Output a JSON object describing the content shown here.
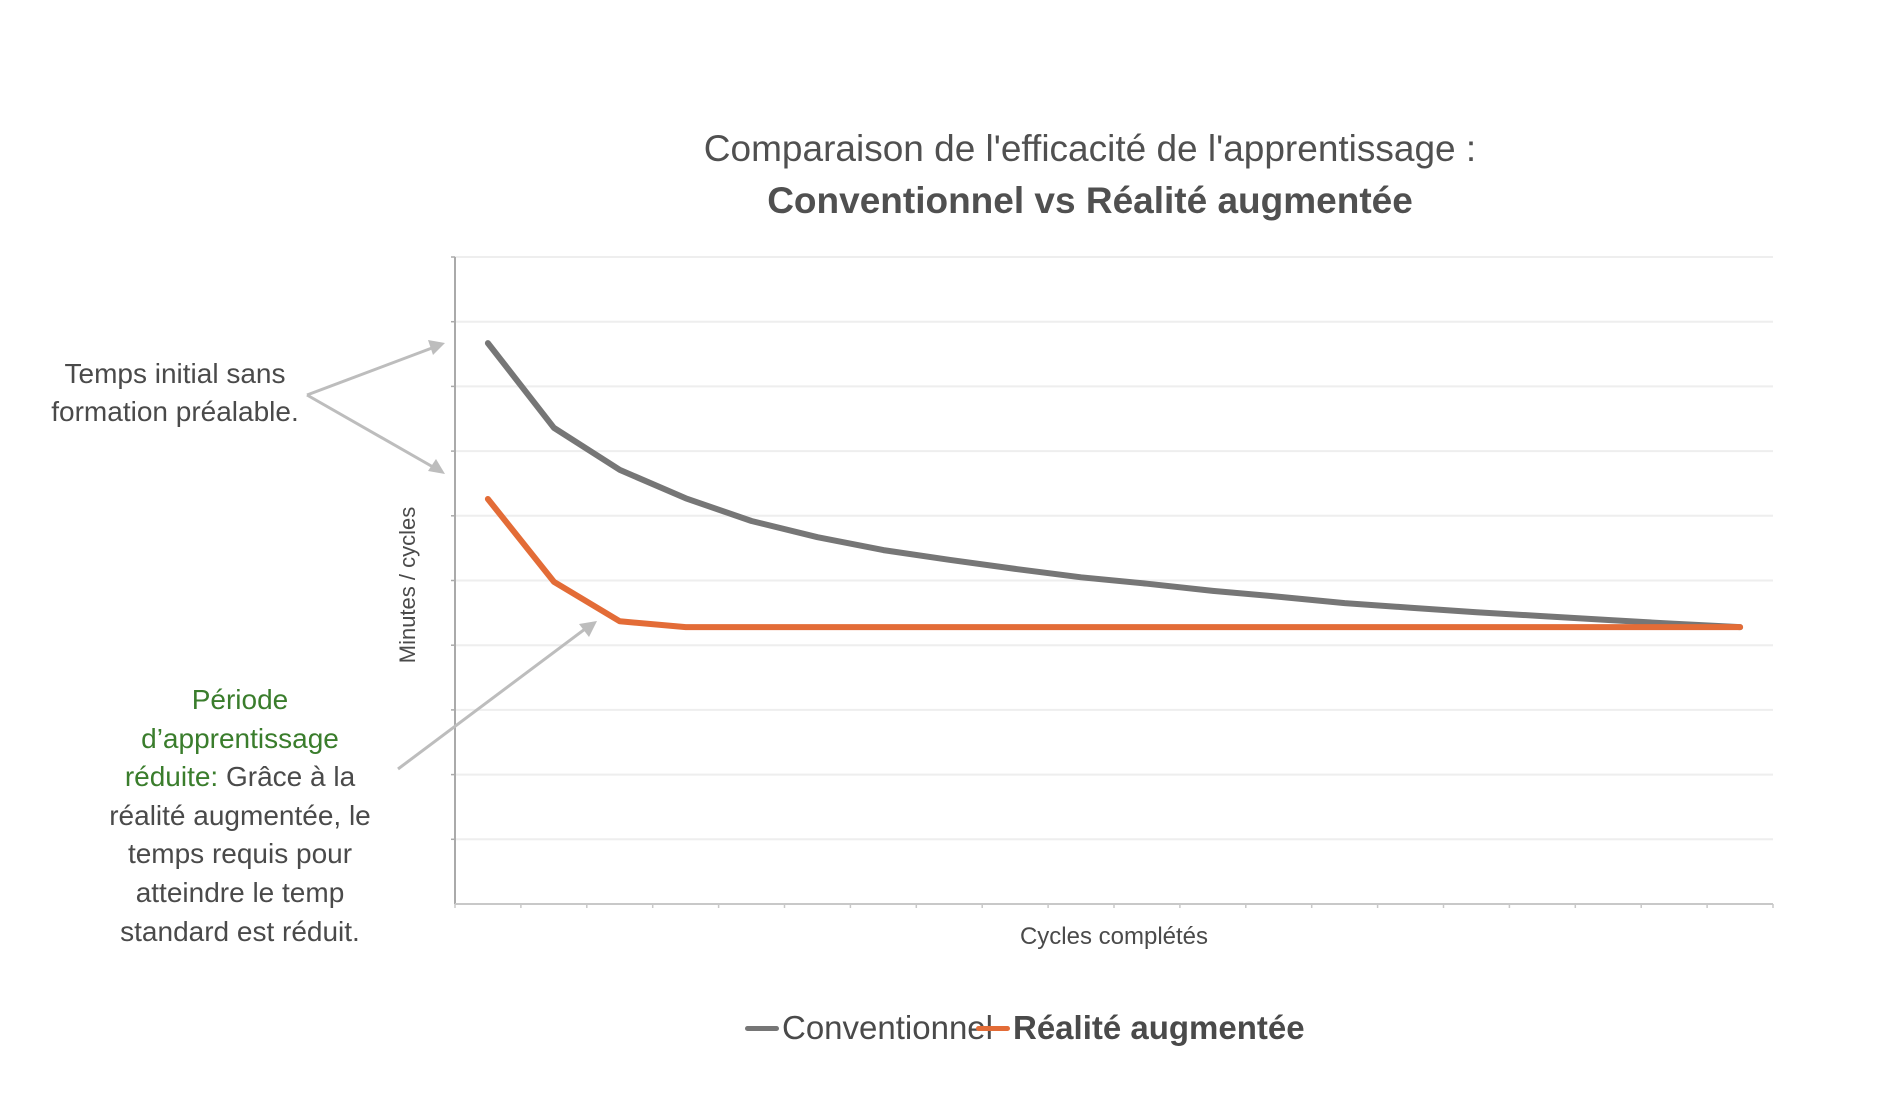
{
  "title": {
    "line1": "Comparaison de l'efficacité de l'apprentissage :",
    "line2": "Conventionnel vs Réalité augmentée"
  },
  "annotations": {
    "initial_time": {
      "line1": "Temps initial sans",
      "line2": "formation préalable."
    },
    "reduced_period": {
      "highlight_line1": "Période",
      "highlight_line2": "d’apprentissage",
      "highlight_line3": "réduite:",
      "text_line3": " Grâce à la",
      "text_line4": "réalité augmentée, le",
      "text_line5": "temps requis pour",
      "text_line6": "atteindre le temp",
      "text_line7": "standard est réduit."
    }
  },
  "colors": {
    "conventionnel": "#767676",
    "realite_augmentee": "#e36c37",
    "annotation_highlight": "#3a7d2c",
    "arrow": "#bdbdbd",
    "gridline": "#eeeeee",
    "axis": "#aaaaaa"
  },
  "chart_data": {
    "type": "line",
    "title": "Comparaison de l'efficacité de l'apprentissage : Conventionnel vs Réalité augmentée",
    "xlabel": "Cycles complétés",
    "ylabel": "Minutes / cycles",
    "x": [
      1,
      2,
      3,
      4,
      5,
      6,
      7,
      8,
      9,
      10,
      11,
      12,
      13,
      14,
      15,
      16,
      17,
      18,
      19,
      20
    ],
    "ylim": [
      0,
      10
    ],
    "y_gridlines": 10,
    "grid": true,
    "tick_labels_visible": false,
    "legend_position": "bottom",
    "series": [
      {
        "name": "Conventionnel",
        "color": "#767676",
        "values": [
          8.67,
          7.36,
          6.71,
          6.27,
          5.92,
          5.67,
          5.47,
          5.32,
          5.18,
          5.05,
          4.95,
          4.84,
          4.75,
          4.65,
          4.58,
          4.51,
          4.45,
          4.39,
          4.33,
          4.28
        ]
      },
      {
        "name": "Réalité augmentée",
        "color": "#e36c37",
        "values": [
          6.26,
          4.98,
          4.37,
          4.28,
          4.28,
          4.28,
          4.28,
          4.28,
          4.28,
          4.28,
          4.28,
          4.28,
          4.28,
          4.28,
          4.28,
          4.28,
          4.28,
          4.28,
          4.28,
          4.28
        ]
      }
    ],
    "annotations": [
      "Temps initial sans formation préalable.",
      "Période d’apprentissage réduite: Grâce à la réalité augmentée, le temps requis pour atteindre le temp standard est réduit."
    ]
  },
  "legend": {
    "items": [
      {
        "label": "Conventionnel",
        "color": "#767676"
      },
      {
        "label": "Réalité augmentée",
        "color": "#e36c37"
      }
    ]
  }
}
